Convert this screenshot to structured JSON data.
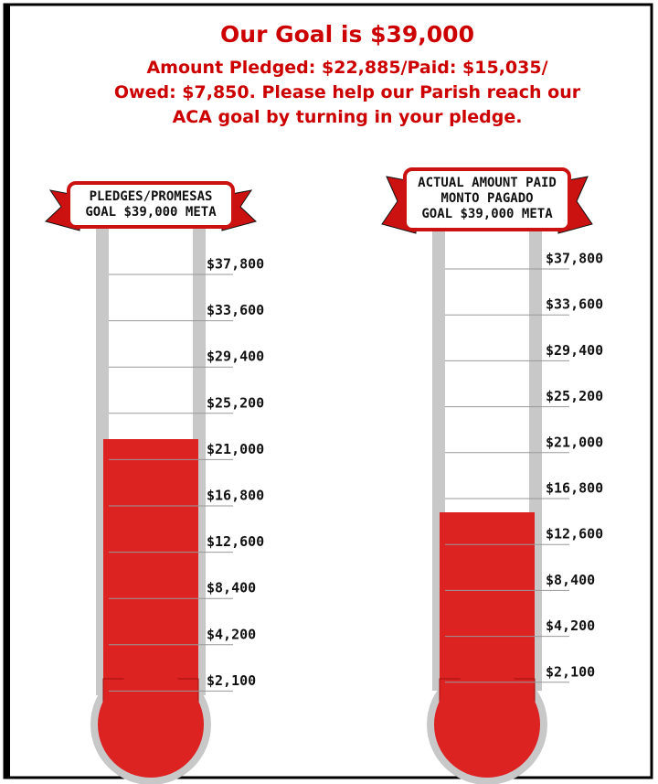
{
  "header": {
    "title": "Our Goal is $39,000",
    "lines": [
      "Amount Pledged:  $22,885/Paid: $15,035/",
      "Owed: $7,850. Please help our Parish reach our",
      "ACA goal by turning in your pledge."
    ]
  },
  "thermometers": [
    {
      "banner": [
        "PLEDGES/PROMESAS",
        "GOAL $39,000 META"
      ],
      "ticks": [
        "$37,800",
        "$33,600",
        "$29,400",
        "$25,200",
        "$21,000",
        "$16,800",
        "$12,600",
        "$8,400",
        "$4,200",
        "$2,100"
      ]
    },
    {
      "banner": [
        "ACTUAL AMOUNT PAID",
        "MONTO PAGADO",
        "GOAL $39,000 META"
      ],
      "ticks": [
        "$37,800",
        "$33,600",
        "$29,400",
        "$25,200",
        "$21,000",
        "$16,800",
        "$12,600",
        "$8,400",
        "$4,200",
        "$2,100"
      ]
    }
  ]
}
